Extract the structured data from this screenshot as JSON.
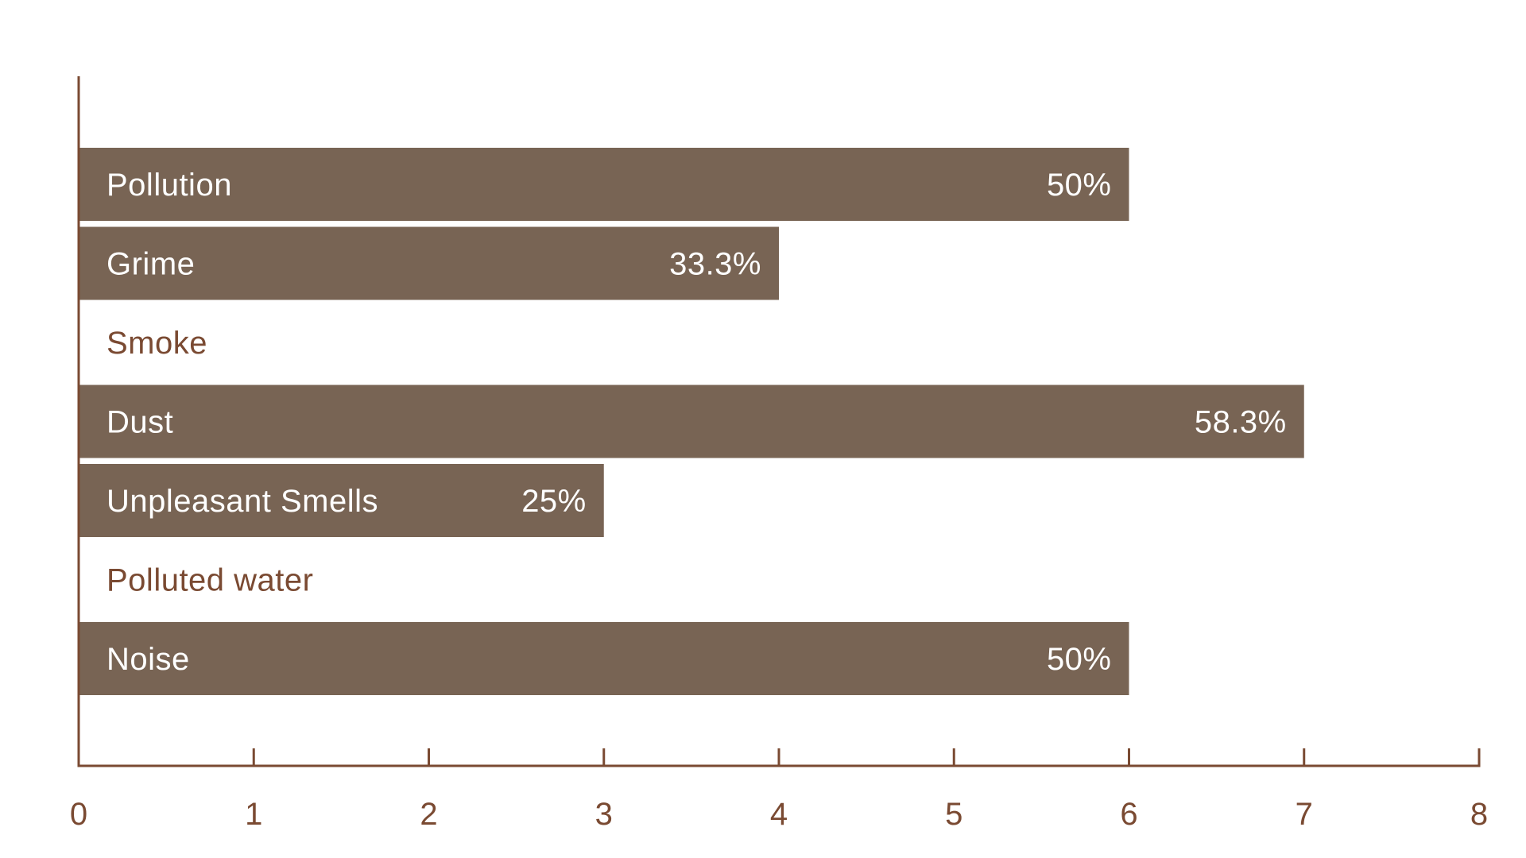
{
  "chart_data": {
    "type": "bar",
    "orientation": "horizontal",
    "categories": [
      "Pollution",
      "Grime",
      "Smoke",
      "Dust",
      "Unpleasant Smells",
      "Polluted water",
      "Noise"
    ],
    "values": [
      6,
      4,
      0,
      7,
      3,
      0,
      6
    ],
    "value_labels": [
      "50%",
      "33.3%",
      "",
      "58.3%",
      "25%",
      "",
      "50%"
    ],
    "xlim": [
      0,
      8
    ],
    "x_ticks": [
      "0",
      "1",
      "2",
      "3",
      "4",
      "5",
      "6",
      "7",
      "8"
    ],
    "title": "",
    "xlabel": "",
    "ylabel": "",
    "grid": false,
    "legend": "none",
    "colors": {
      "bar": "#786454",
      "bar_text": "#ffffff",
      "axis": "#7a4a32",
      "outside_text": "#7a4a32"
    }
  }
}
